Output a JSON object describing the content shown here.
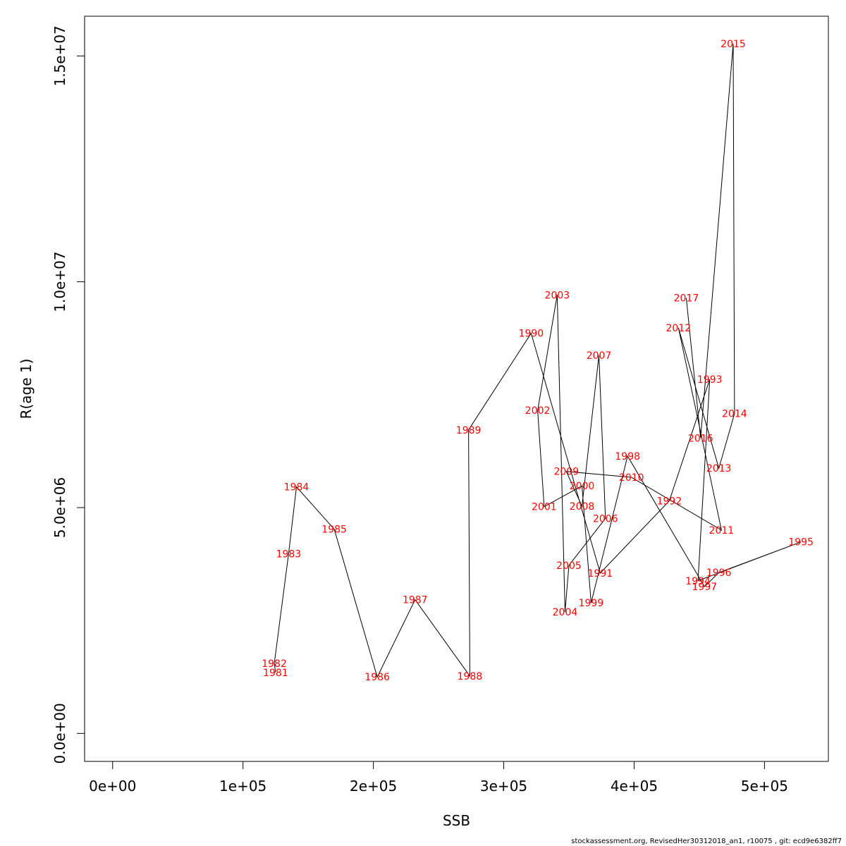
{
  "chart_data": {
    "type": "line",
    "xlabel": "SSB",
    "ylabel": "R(age 1)",
    "xlim": [
      -21500,
      549000
    ],
    "ylim": [
      -620000,
      15880000
    ],
    "x_ticks": [
      {
        "value": 0,
        "label": "0e+00"
      },
      {
        "value": 100000,
        "label": "1e+05"
      },
      {
        "value": 200000,
        "label": "2e+05"
      },
      {
        "value": 300000,
        "label": "3e+05"
      },
      {
        "value": 400000,
        "label": "4e+05"
      },
      {
        "value": 500000,
        "label": "5e+05"
      }
    ],
    "y_ticks": [
      {
        "value": 0,
        "label": "0.0e+00"
      },
      {
        "value": 5000000,
        "label": "5.0e+06"
      },
      {
        "value": 10000000,
        "label": "1.0e+07"
      },
      {
        "value": 15000000,
        "label": "1.5e+07"
      }
    ],
    "label_color": "#ff0000",
    "line_color": "#000000",
    "points": [
      {
        "year": "1981",
        "ssb": 125000,
        "r": 1350000
      },
      {
        "year": "1982",
        "ssb": 124000,
        "r": 1550000
      },
      {
        "year": "1983",
        "ssb": 135000,
        "r": 3980000
      },
      {
        "year": "1984",
        "ssb": 141000,
        "r": 5460000
      },
      {
        "year": "1985",
        "ssb": 170000,
        "r": 4520000
      },
      {
        "year": "1986",
        "ssb": 203000,
        "r": 1250000
      },
      {
        "year": "1987",
        "ssb": 232000,
        "r": 2960000
      },
      {
        "year": "1988",
        "ssb": 274000,
        "r": 1270000
      },
      {
        "year": "1989",
        "ssb": 273000,
        "r": 6720000
      },
      {
        "year": "1990",
        "ssb": 321000,
        "r": 8860000
      },
      {
        "year": "1991",
        "ssb": 374000,
        "r": 3550000
      },
      {
        "year": "1992",
        "ssb": 427000,
        "r": 5150000
      },
      {
        "year": "1993",
        "ssb": 458000,
        "r": 7840000
      },
      {
        "year": "1994",
        "ssb": 449000,
        "r": 3380000
      },
      {
        "year": "1995",
        "ssb": 528000,
        "r": 4240000
      },
      {
        "year": "1996",
        "ssb": 465000,
        "r": 3560000
      },
      {
        "year": "1997",
        "ssb": 454000,
        "r": 3250000
      },
      {
        "year": "1998",
        "ssb": 395000,
        "r": 6140000
      },
      {
        "year": "1999",
        "ssb": 367000,
        "r": 2890000
      },
      {
        "year": "2000",
        "ssb": 360000,
        "r": 5480000
      },
      {
        "year": "2001",
        "ssb": 331000,
        "r": 5020000
      },
      {
        "year": "2002",
        "ssb": 326000,
        "r": 7150000
      },
      {
        "year": "2003",
        "ssb": 341000,
        "r": 9710000
      },
      {
        "year": "2004",
        "ssb": 347000,
        "r": 2690000
      },
      {
        "year": "2005",
        "ssb": 350000,
        "r": 3720000
      },
      {
        "year": "2006",
        "ssb": 378000,
        "r": 4760000
      },
      {
        "year": "2007",
        "ssb": 373000,
        "r": 8370000
      },
      {
        "year": "2008",
        "ssb": 360000,
        "r": 5030000
      },
      {
        "year": "2009",
        "ssb": 348000,
        "r": 5800000
      },
      {
        "year": "2010",
        "ssb": 398000,
        "r": 5670000
      },
      {
        "year": "2011",
        "ssb": 467000,
        "r": 4500000
      },
      {
        "year": "2012",
        "ssb": 434000,
        "r": 8980000
      },
      {
        "year": "2013",
        "ssb": 465000,
        "r": 5870000
      },
      {
        "year": "2014",
        "ssb": 477000,
        "r": 7080000
      },
      {
        "year": "2015",
        "ssb": 476000,
        "r": 15270000
      },
      {
        "year": "2016",
        "ssb": 451000,
        "r": 6540000
      },
      {
        "year": "2017",
        "ssb": 440000,
        "r": 9640000
      }
    ]
  },
  "footer": {
    "text": "stockassessment.org, RevisedHer30312018_an1, r10075 , git: ecd9e6382ff7"
  }
}
